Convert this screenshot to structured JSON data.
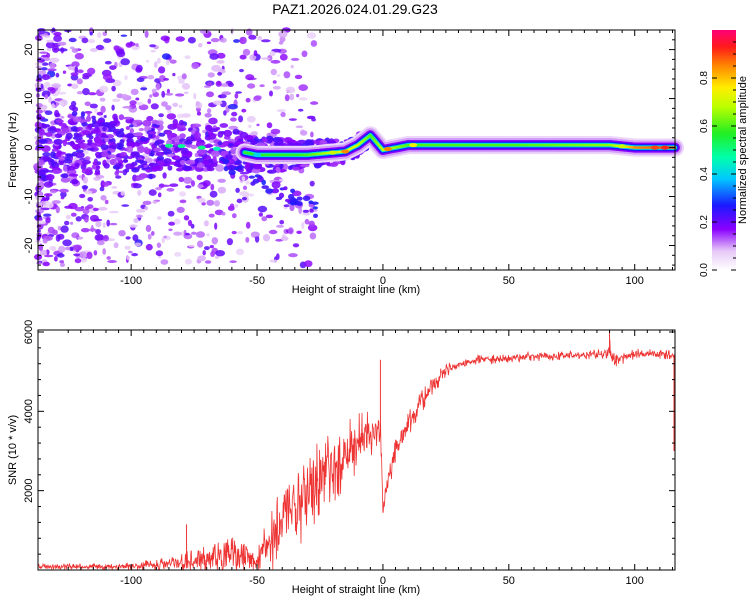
{
  "title": "PAZ1.2026.024.01.29.G23",
  "chart_data": [
    {
      "type": "heatmap",
      "xlabel": "Height of straight line (km)",
      "ylabel": "Frequency (Hz)",
      "xlim": [
        -137,
        116
      ],
      "ylim": [
        -25,
        24
      ],
      "xticks": [
        -100,
        -50,
        0,
        50,
        100
      ],
      "yticks": [
        -20,
        -10,
        0,
        10,
        20
      ],
      "colorbar": {
        "label": "Normalized spectral amplitude",
        "ticks": [
          0.0,
          0.2,
          0.4,
          0.6,
          0.8
        ],
        "tick_labels": [
          "0.0",
          "0.2",
          "0.4",
          "0.6",
          "0.8"
        ],
        "range": [
          0.0,
          1.0
        ]
      },
      "ridge": {
        "description_points_x": [
          -137,
          -100,
          -80,
          -60,
          -50,
          -30,
          -15,
          -10,
          -5,
          0,
          10,
          50,
          90,
          100,
          116
        ],
        "frequency_hz": [
          0.5,
          0.5,
          0.3,
          -0.5,
          -1.5,
          -1.5,
          -0.8,
          0.5,
          2.5,
          -0.5,
          0.5,
          0.5,
          0.5,
          0.0,
          0.0
        ],
        "peak_amplitude": [
          0.35,
          0.4,
          0.5,
          0.55,
          0.5,
          0.6,
          0.75,
          0.7,
          0.6,
          0.7,
          0.6,
          0.6,
          0.65,
          0.85,
          0.9
        ]
      }
    },
    {
      "type": "line",
      "xlabel": "Height of straight line (km)",
      "ylabel": "SNR (10 * v/v)",
      "xlim": [
        -137,
        116
      ],
      "ylim": [
        0,
        6050
      ],
      "xticks": [
        -100,
        -50,
        0,
        50,
        100
      ],
      "yticks": [
        2000,
        4000,
        6000
      ],
      "series_color": "#ee3333",
      "envelope": {
        "x": [
          -137,
          -110,
          -90,
          -75,
          -60,
          -50,
          -45,
          -40,
          -35,
          -30,
          -25,
          -20,
          -15,
          -10,
          -5,
          -1,
          0,
          1,
          5,
          10,
          15,
          20,
          25,
          30,
          35,
          40,
          50,
          60,
          70,
          80,
          88,
          90,
          92,
          100,
          110,
          116
        ],
        "mean": [
          100,
          80,
          120,
          220,
          350,
          250,
          700,
          1300,
          1700,
          2000,
          2300,
          2600,
          2900,
          3200,
          3450,
          3600,
          1500,
          2000,
          2900,
          3700,
          4200,
          4700,
          5000,
          5150,
          5250,
          5300,
          5350,
          5380,
          5400,
          5420,
          5450,
          5600,
          5300,
          5450,
          5450,
          5400
        ],
        "noise": [
          80,
          70,
          150,
          300,
          500,
          300,
          800,
          1300,
          1200,
          1200,
          1000,
          950,
          850,
          750,
          650,
          600,
          200,
          300,
          400,
          350,
          300,
          250,
          200,
          170,
          150,
          130,
          120,
          120,
          120,
          120,
          130,
          400,
          200,
          130,
          120,
          120
        ]
      },
      "spikes": [
        {
          "x": -1,
          "y": 5300
        },
        {
          "x": 90,
          "y": 6050
        },
        {
          "x": -78,
          "y": 1150
        }
      ]
    }
  ]
}
